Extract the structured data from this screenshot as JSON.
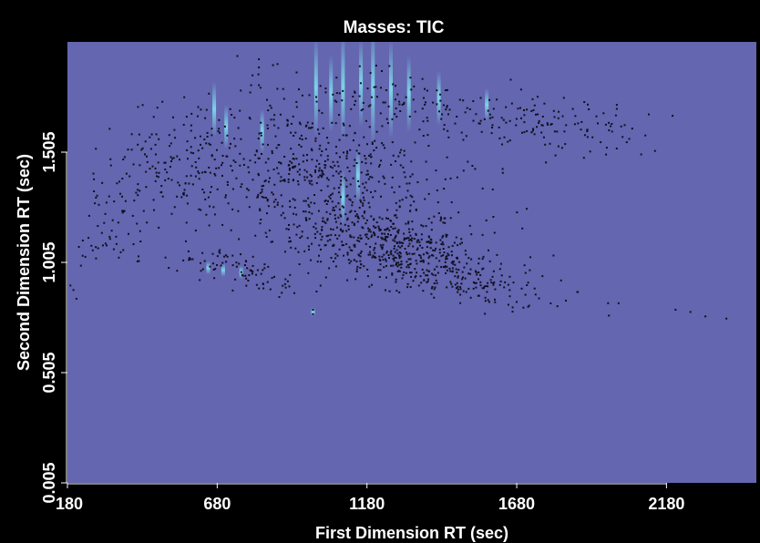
{
  "chart_data": {
    "type": "scatter",
    "title": "Masses:  TIC",
    "xlabel": "First Dimension RT (sec)",
    "ylabel": "Second Dimension RT (sec)",
    "xlim": [
      180,
      2480
    ],
    "ylim": [
      0.005,
      2.005
    ],
    "xticks": [
      180,
      680,
      1180,
      1680,
      2180
    ],
    "yticks": [
      0.005,
      0.505,
      1.005,
      1.505
    ],
    "ytick_labels": [
      "0.005",
      "0.505",
      "1.005",
      "1.505"
    ],
    "grid": false,
    "legend": "none",
    "colors": {
      "background": "#000000",
      "plot_background": "#6466b0",
      "points": "#101020",
      "peak_highlight": "#7fe8f0",
      "text": "#ffffff"
    },
    "clusters": [
      {
        "cx": 1250,
        "cy": 1.07,
        "sx": 190,
        "sy": 0.09,
        "n": 520
      },
      {
        "cx": 1030,
        "cy": 1.42,
        "sx": 230,
        "sy": 0.17,
        "n": 520
      },
      {
        "cx": 1400,
        "cy": 1.7,
        "sx": 300,
        "sy": 0.08,
        "n": 190
      },
      {
        "cx": 560,
        "cy": 1.45,
        "sx": 120,
        "sy": 0.18,
        "n": 150
      },
      {
        "cx": 340,
        "cy": 1.18,
        "sx": 70,
        "sy": 0.15,
        "n": 60
      },
      {
        "cx": 760,
        "cy": 0.97,
        "sx": 120,
        "sy": 0.05,
        "n": 90
      },
      {
        "cx": 1500,
        "cy": 0.9,
        "sx": 170,
        "sy": 0.05,
        "n": 110
      },
      {
        "cx": 1850,
        "cy": 1.65,
        "sx": 150,
        "sy": 0.06,
        "n": 60
      }
    ],
    "isolated_points": [
      {
        "x": 190,
        "y": 0.9
      },
      {
        "x": 200,
        "y": 0.88
      },
      {
        "x": 210,
        "y": 0.84
      },
      {
        "x": 225,
        "y": 0.99
      },
      {
        "x": 240,
        "y": 1.03
      },
      {
        "x": 260,
        "y": 1.08
      },
      {
        "x": 1985,
        "y": 0.82
      },
      {
        "x": 2020,
        "y": 0.82
      },
      {
        "x": 2210,
        "y": 0.79
      },
      {
        "x": 2260,
        "y": 0.78
      },
      {
        "x": 2310,
        "y": 0.76
      },
      {
        "x": 2380,
        "y": 0.75
      },
      {
        "x": 2200,
        "y": 1.67
      },
      {
        "x": 1960,
        "y": 1.55
      },
      {
        "x": 1000,
        "y": 0.79
      },
      {
        "x": 1000,
        "y": 0.77
      }
    ],
    "peaks": [
      {
        "x": 1010,
        "y": 1.8,
        "h": 0.45
      },
      {
        "x": 1060,
        "y": 1.77,
        "h": 0.35
      },
      {
        "x": 1100,
        "y": 1.8,
        "h": 0.5
      },
      {
        "x": 1160,
        "y": 1.82,
        "h": 0.4
      },
      {
        "x": 1200,
        "y": 1.8,
        "h": 0.55
      },
      {
        "x": 1260,
        "y": 1.79,
        "h": 0.45
      },
      {
        "x": 1320,
        "y": 1.77,
        "h": 0.35
      },
      {
        "x": 1420,
        "y": 1.75,
        "h": 0.25
      },
      {
        "x": 1580,
        "y": 1.72,
        "h": 0.15
      },
      {
        "x": 670,
        "y": 1.7,
        "h": 0.25
      },
      {
        "x": 710,
        "y": 1.62,
        "h": 0.2
      },
      {
        "x": 830,
        "y": 1.6,
        "h": 0.2
      },
      {
        "x": 650,
        "y": 0.98,
        "h": 0.06
      },
      {
        "x": 700,
        "y": 0.97,
        "h": 0.06
      },
      {
        "x": 760,
        "y": 0.96,
        "h": 0.06
      },
      {
        "x": 1000,
        "y": 0.78,
        "h": 0.04
      },
      {
        "x": 1100,
        "y": 1.3,
        "h": 0.25
      },
      {
        "x": 1150,
        "y": 1.4,
        "h": 0.25
      }
    ]
  }
}
